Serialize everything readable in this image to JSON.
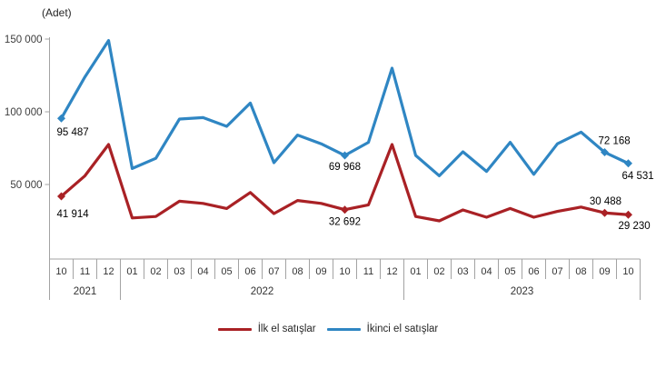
{
  "chart": {
    "unit_label": "(Adet)"
  },
  "chart_data": {
    "type": "line",
    "title": "",
    "ylabel": "(Adet)",
    "xlabel": "",
    "grid": false,
    "legend_position": "bottom",
    "ylim": [
      0,
      155000
    ],
    "yticks": [
      {
        "value": 50000,
        "label": "50 000"
      },
      {
        "value": 100000,
        "label": "100 000"
      },
      {
        "value": 150000,
        "label": "150 000"
      }
    ],
    "year_groups": [
      {
        "label": "2021",
        "months": [
          "10",
          "11",
          "12"
        ]
      },
      {
        "label": "2022",
        "months": [
          "01",
          "02",
          "03",
          "04",
          "05",
          "06",
          "07",
          "08",
          "09",
          "10",
          "11",
          "12"
        ]
      },
      {
        "label": "2023",
        "months": [
          "01",
          "02",
          "03",
          "04",
          "05",
          "06",
          "07",
          "08",
          "09",
          "10"
        ]
      }
    ],
    "series": [
      {
        "name": "İlk el satışlar",
        "color": "#a92125",
        "values": [
          41914,
          56000,
          77500,
          27000,
          28000,
          38500,
          37000,
          33500,
          44500,
          30000,
          39000,
          37000,
          32692,
          36000,
          77500,
          28000,
          25000,
          32500,
          27500,
          33500,
          27500,
          31500,
          34500,
          30488,
          29230
        ],
        "data_labels": [
          {
            "index": 0,
            "text": "41 914",
            "anchor": "start",
            "dx": -5,
            "dy": 23
          },
          {
            "index": 12,
            "text": "32 692",
            "anchor": "middle",
            "dx": 0,
            "dy": 17
          },
          {
            "index": 23,
            "text": "30 488",
            "anchor": "middle",
            "dx": 1,
            "dy": -9
          },
          {
            "index": 24,
            "text": "29 230",
            "anchor": "start",
            "dx": -11,
            "dy": 16
          }
        ]
      },
      {
        "name": "İkinci el satışlar",
        "color": "#2f86c3",
        "values": [
          95487,
          124000,
          149000,
          61000,
          68000,
          95000,
          96000,
          90000,
          106000,
          65000,
          84000,
          78000,
          69968,
          79000,
          130000,
          70000,
          56000,
          72500,
          59000,
          79000,
          57000,
          78000,
          86000,
          72168,
          64531
        ],
        "data_labels": [
          {
            "index": 0,
            "text": "95 487",
            "anchor": "start",
            "dx": -5,
            "dy": 19
          },
          {
            "index": 12,
            "text": "69 968",
            "anchor": "middle",
            "dx": 0,
            "dy": 16
          },
          {
            "index": 23,
            "text": "72 168",
            "anchor": "start",
            "dx": -7,
            "dy": -9
          },
          {
            "index": 24,
            "text": "64 531",
            "anchor": "start",
            "dx": -7,
            "dy": 17
          }
        ]
      }
    ]
  }
}
